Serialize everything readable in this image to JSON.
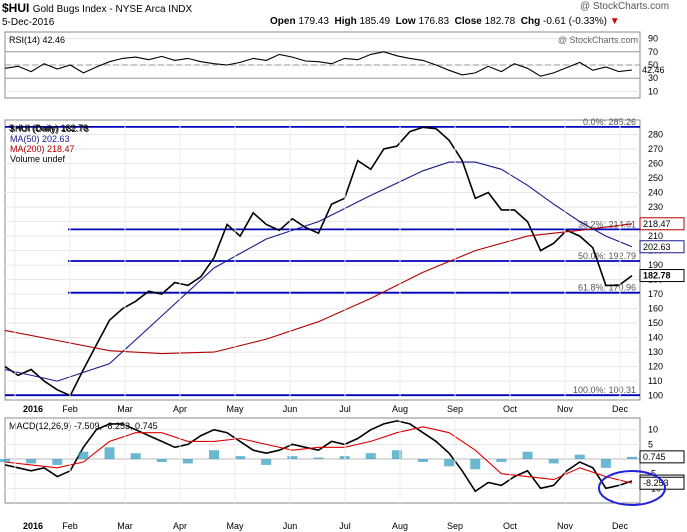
{
  "header": {
    "symbol": "$HUI",
    "name": "Gold Bugs Index - NYSE Arca  INDX",
    "date": "5-Dec-2016",
    "watermark": "@ StockCharts.com",
    "open_label": "Open",
    "open": "179.43",
    "high_label": "High",
    "high": "185.49",
    "low_label": "Low",
    "low": "176.83",
    "close_label": "Close",
    "close": "182.78",
    "chg_label": "Chg",
    "chg": "-0.61 (-0.33%)",
    "chg_arrow": "triangle-down-icon",
    "rsi_watermark": "@ StockCharts.com"
  },
  "colors": {
    "price": "#000000",
    "price_down": "#cc0000",
    "ma50": "#1a1a8c",
    "ma200": "#b00000",
    "fib": "#0000bb",
    "macd": "#000000",
    "signal": "#dd0000",
    "histogram": "#3aa0c0",
    "annotation": "#2222dd"
  },
  "chart_data": [
    {
      "type": "line",
      "title": "RSI(14) 42.46",
      "series": [
        {
          "name": "RSI(14)",
          "last": 42.46,
          "x": [
            0,
            1,
            2,
            3,
            4,
            5,
            6,
            7,
            8,
            9,
            10,
            11,
            12,
            13,
            14,
            15,
            16,
            17,
            18,
            19,
            20,
            21,
            22,
            23,
            24,
            25,
            26,
            27,
            28,
            29,
            30,
            31,
            32,
            33,
            34,
            35,
            36,
            37,
            38,
            39,
            40,
            41,
            42,
            43,
            44,
            45,
            46,
            47,
            48
          ],
          "values": [
            45,
            48,
            40,
            52,
            44,
            50,
            38,
            47,
            55,
            60,
            62,
            58,
            63,
            57,
            60,
            55,
            52,
            50,
            54,
            60,
            57,
            66,
            62,
            56,
            55,
            52,
            60,
            58,
            66,
            70,
            64,
            60,
            57,
            50,
            42,
            35,
            38,
            48,
            40,
            52,
            45,
            33,
            38,
            46,
            54,
            42,
            47,
            40,
            42.46
          ]
        }
      ],
      "ylim": [
        0,
        100
      ],
      "ticks": [
        10,
        30,
        50,
        70,
        90
      ],
      "reference_lines": [
        30,
        50,
        70
      ]
    },
    {
      "type": "line",
      "title": "$HUI (Daily) 182.78",
      "legend": [
        "$HUI (Daily) 182.78",
        "MA(50) 202.63",
        "MA(200) 218.47",
        "Volume undef"
      ],
      "xlabel": "",
      "ylabel": "",
      "x_ticks": [
        "2016",
        "Feb",
        "Mar",
        "Apr",
        "May",
        "Jun",
        "Jul",
        "Aug",
        "Sep",
        "Oct",
        "Nov",
        "Dec"
      ],
      "ylim": [
        97,
        290
      ],
      "ticks": [
        100,
        110,
        120,
        130,
        140,
        150,
        160,
        170,
        180,
        190,
        200,
        210,
        220,
        230,
        240,
        250,
        260,
        270,
        280
      ],
      "series": [
        {
          "name": "$HUI (Daily)",
          "last": 182.78,
          "x": [
            0,
            1,
            2,
            3,
            4,
            5,
            6,
            7,
            8,
            9,
            10,
            11,
            12,
            13,
            14,
            15,
            16,
            17,
            18,
            19,
            20,
            21,
            22,
            23,
            24,
            25,
            26,
            27,
            28,
            29,
            30,
            31,
            32,
            33,
            34,
            35,
            36,
            37,
            38,
            39,
            40,
            41,
            42,
            43,
            44,
            45,
            46,
            47,
            48
          ],
          "values": [
            120,
            114,
            118,
            110,
            104,
            100,
            118,
            135,
            152,
            160,
            165,
            172,
            170,
            178,
            176,
            182,
            195,
            218,
            210,
            226,
            218,
            214,
            222,
            216,
            212,
            232,
            236,
            262,
            256,
            270,
            272,
            282,
            285,
            284,
            276,
            262,
            236,
            240,
            228,
            228,
            220,
            200,
            205,
            214,
            210,
            202,
            176,
            176,
            182.78
          ]
        },
        {
          "name": "MA(50)",
          "last": 202.63,
          "x": [
            0,
            4,
            8,
            12,
            16,
            20,
            24,
            28,
            32,
            34,
            36,
            38,
            40,
            42,
            44,
            46,
            48
          ],
          "values": [
            118,
            110,
            122,
            155,
            188,
            208,
            220,
            238,
            255,
            261,
            261,
            256,
            245,
            232,
            220,
            210,
            202.63
          ]
        },
        {
          "name": "MA(200)",
          "last": 218.47,
          "x": [
            0,
            4,
            8,
            12,
            16,
            20,
            24,
            28,
            32,
            36,
            40,
            44,
            48
          ],
          "values": [
            145,
            138,
            131,
            129,
            130,
            139,
            151,
            167,
            185,
            200,
            210,
            214,
            218.47
          ]
        }
      ],
      "fib_levels": [
        {
          "label": "0.0%: 285.26",
          "value": 285.26
        },
        {
          "label": "38.2%: 214.61",
          "value": 214.61
        },
        {
          "label": "50.0%: 192.79",
          "value": 192.79
        },
        {
          "label": "61.8%: 170.96",
          "value": 170.96
        },
        {
          "label": "100.0%: 100.31",
          "value": 100.31
        }
      ],
      "right_tags": [
        {
          "label": "218.47",
          "value": 218.47,
          "style": "ma200"
        },
        {
          "label": "202.63",
          "value": 202.63,
          "style": "ma50"
        },
        {
          "label": "182.78",
          "value": 182.78,
          "style": "price"
        }
      ]
    },
    {
      "type": "line",
      "title": "MACD(12,26,9) -7.509, -8.253, 0.745",
      "legend": [
        "MACD(12,26,9)",
        "-7.509",
        "-8.253",
        "0.745"
      ],
      "ylim": [
        -15,
        14
      ],
      "ticks": [
        -10,
        -5,
        0,
        5,
        10
      ],
      "series": [
        {
          "name": "MACD",
          "last": -7.509,
          "x": [
            0,
            1,
            2,
            3,
            4,
            5,
            6,
            7,
            8,
            9,
            10,
            11,
            12,
            13,
            14,
            15,
            16,
            17,
            18,
            19,
            20,
            21,
            22,
            23,
            24,
            25,
            26,
            27,
            28,
            29,
            30,
            31,
            32,
            33,
            34,
            35,
            36,
            37,
            38,
            39,
            40,
            41,
            42,
            43,
            44,
            45,
            46,
            47,
            48
          ],
          "values": [
            -2,
            -3,
            -4,
            -3,
            -6,
            -4,
            4,
            10,
            12,
            12,
            10,
            8,
            6,
            4,
            5,
            8,
            10,
            9,
            6,
            3,
            2,
            3,
            5,
            4,
            3,
            6,
            5,
            7,
            10,
            12,
            13,
            12,
            9,
            6,
            2,
            -4,
            -11,
            -8,
            -9,
            -6,
            -4,
            -10,
            -9,
            -4,
            -1,
            -3,
            -10,
            -9,
            -7.509
          ]
        },
        {
          "name": "Signal",
          "last": -8.253,
          "x": [
            0,
            2,
            4,
            6,
            8,
            10,
            12,
            14,
            16,
            18,
            20,
            22,
            24,
            26,
            28,
            30,
            32,
            34,
            36,
            38,
            40,
            42,
            44,
            46,
            48
          ],
          "values": [
            -1,
            -2,
            -3,
            -1,
            6,
            9,
            9,
            6,
            6,
            7,
            5,
            3,
            4,
            4,
            6,
            9,
            11,
            9,
            3,
            -5,
            -6,
            -7,
            -3,
            -6,
            -8.253
          ]
        },
        {
          "name": "Histogram",
          "last": 0.745,
          "x": [
            0,
            2,
            4,
            6,
            8,
            10,
            12,
            14,
            16,
            18,
            20,
            22,
            24,
            26,
            28,
            30,
            32,
            34,
            36,
            38,
            40,
            42,
            44,
            46,
            48
          ],
          "values": [
            -1,
            -1.5,
            -2,
            2.5,
            4,
            2,
            -1,
            -1.5,
            3,
            1,
            -2,
            1,
            0.5,
            1,
            2,
            3,
            -1,
            -2.5,
            -3.5,
            -1,
            2.5,
            -1.5,
            1.5,
            -3,
            0.745
          ]
        }
      ],
      "right_tags": [
        {
          "label": "0.745",
          "value": 0.745
        },
        {
          "label": "-7.509",
          "value": -7.509
        },
        {
          "label": "-8.253",
          "value": -8.253
        }
      ],
      "x_ticks": [
        "2016",
        "Feb",
        "Mar",
        "Apr",
        "May",
        "Jun",
        "Jul",
        "Aug",
        "Sep",
        "Oct",
        "Nov",
        "Dec"
      ]
    }
  ]
}
